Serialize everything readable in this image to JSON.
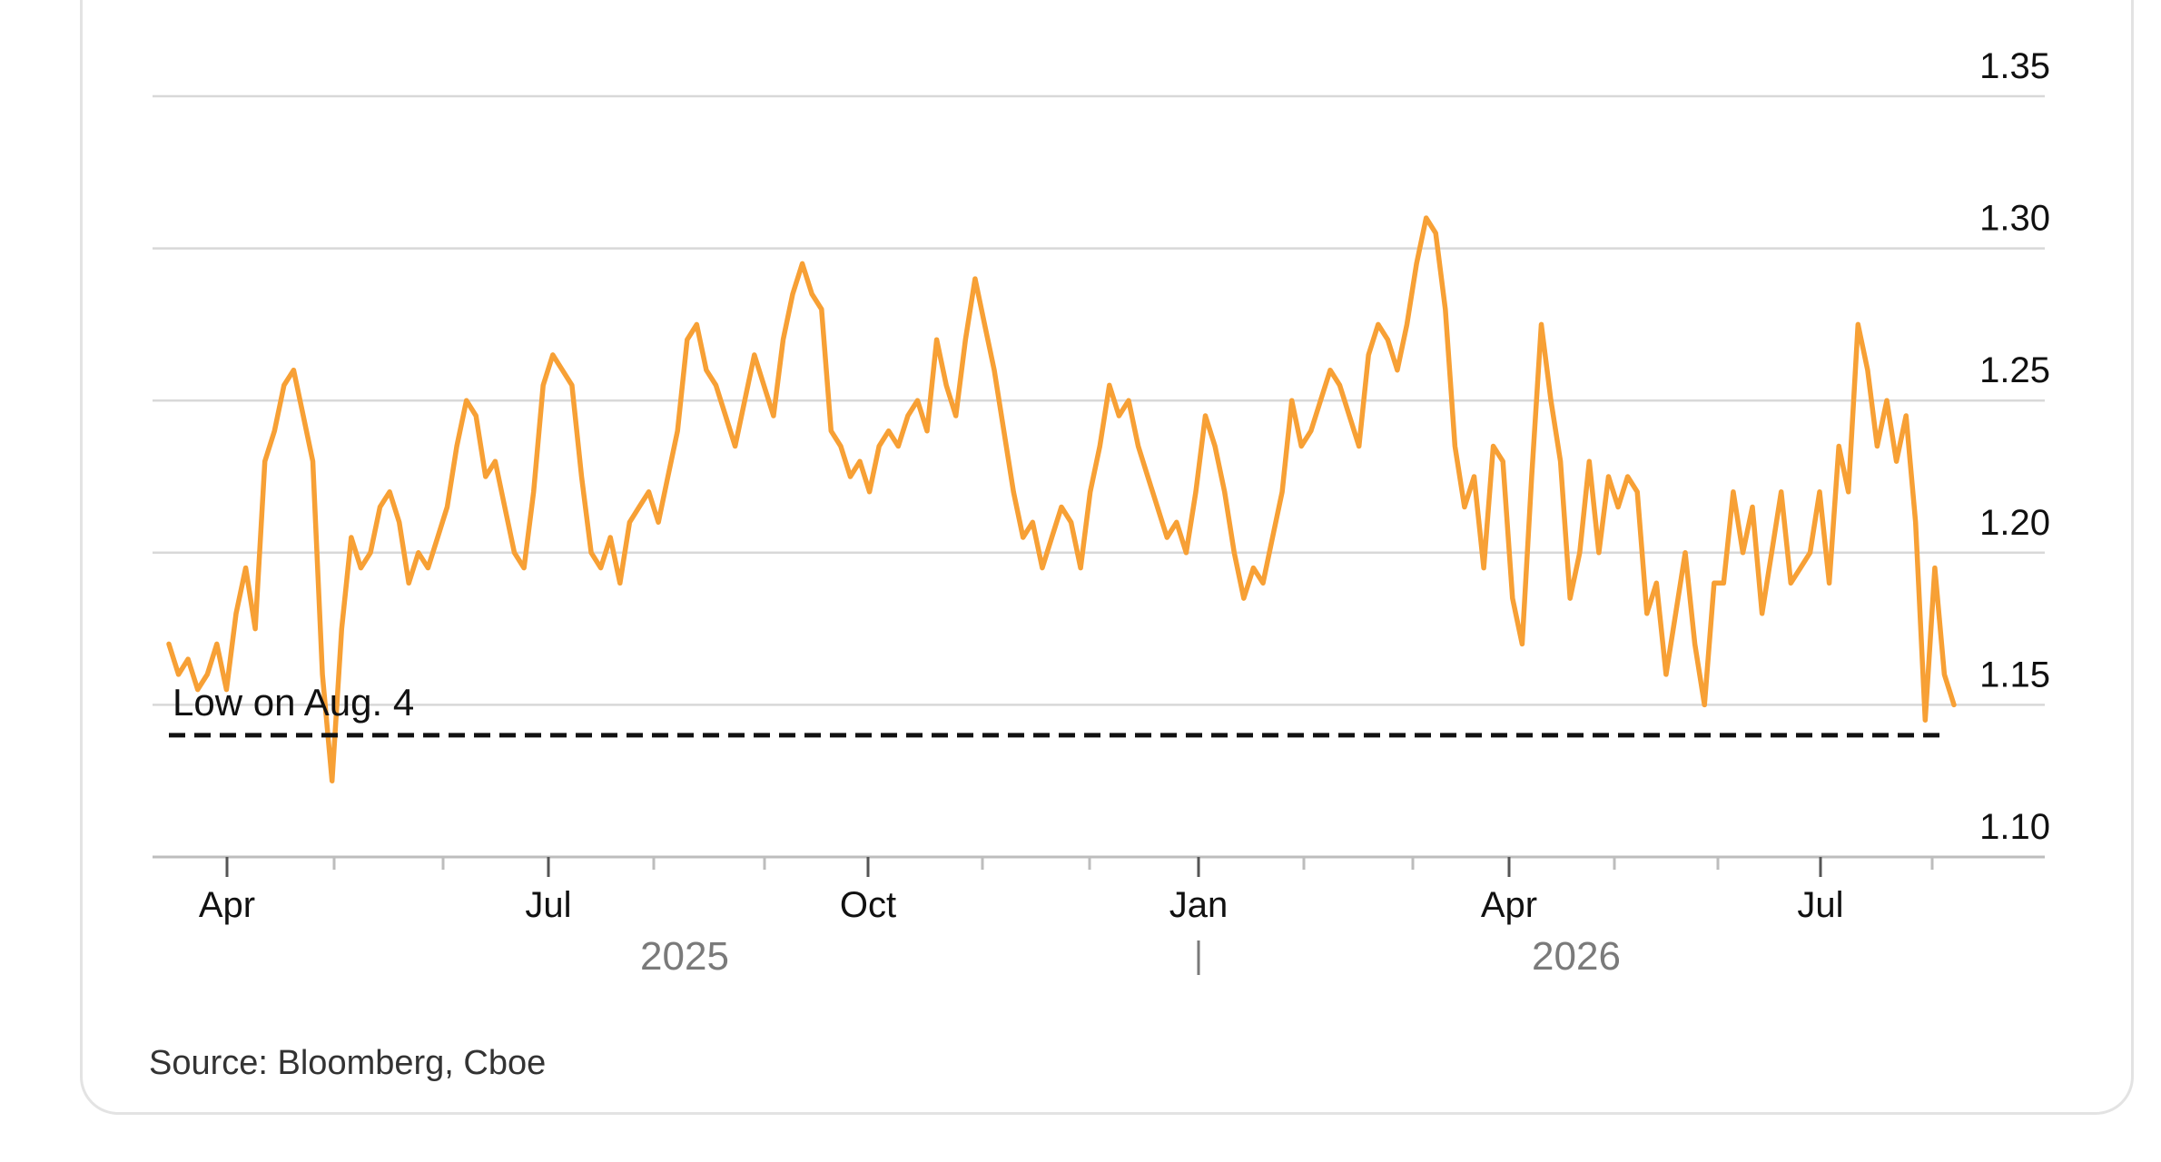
{
  "chart_data": {
    "type": "line",
    "title": "",
    "xlabel": "",
    "ylabel": "",
    "ylim": [
      1.1,
      1.35
    ],
    "yticks": [
      "1.35",
      "1.30",
      "1.25",
      "1.20",
      "1.15",
      "1.10"
    ],
    "xticks": [
      "Apr",
      "Jul",
      "Oct",
      "Jan",
      "Apr",
      "Jul"
    ],
    "years": [
      "2025",
      "2026"
    ],
    "grid": true,
    "series_color": "#f7a035",
    "series": [
      {
        "values": [
          1.17,
          1.16,
          1.165,
          1.155,
          1.16,
          1.17,
          1.155,
          1.18,
          1.195,
          1.175,
          1.23,
          1.24,
          1.255,
          1.26,
          1.245,
          1.23,
          1.16,
          1.125,
          1.175,
          1.205,
          1.195,
          1.2,
          1.215,
          1.22,
          1.21,
          1.19,
          1.2,
          1.195,
          1.205,
          1.215,
          1.235,
          1.25,
          1.245,
          1.225,
          1.23,
          1.215,
          1.2,
          1.195,
          1.22,
          1.255,
          1.265,
          1.26,
          1.255,
          1.225,
          1.2,
          1.195,
          1.205,
          1.19,
          1.21,
          1.215,
          1.22,
          1.21,
          1.225,
          1.24,
          1.27,
          1.275,
          1.26,
          1.255,
          1.245,
          1.235,
          1.25,
          1.265,
          1.255,
          1.245,
          1.27,
          1.285,
          1.295,
          1.285,
          1.28,
          1.24,
          1.235,
          1.225,
          1.23,
          1.22,
          1.235,
          1.24,
          1.235,
          1.245,
          1.25,
          1.24,
          1.27,
          1.255,
          1.245,
          1.27,
          1.29,
          1.275,
          1.26,
          1.24,
          1.22,
          1.205,
          1.21,
          1.195,
          1.205,
          1.215,
          1.21,
          1.195,
          1.22,
          1.235,
          1.255,
          1.245,
          1.25,
          1.235,
          1.225,
          1.215,
          1.205,
          1.21,
          1.2,
          1.22,
          1.245,
          1.235,
          1.22,
          1.2,
          1.185,
          1.195,
          1.19,
          1.205,
          1.22,
          1.25,
          1.235,
          1.24,
          1.25,
          1.26,
          1.255,
          1.245,
          1.235,
          1.265,
          1.275,
          1.27,
          1.26,
          1.275,
          1.295,
          1.31,
          1.305,
          1.28,
          1.235,
          1.215,
          1.225,
          1.195,
          1.235,
          1.23,
          1.185,
          1.17,
          1.225,
          1.275,
          1.25,
          1.23,
          1.185,
          1.2,
          1.23,
          1.2,
          1.225,
          1.215,
          1.225,
          1.22,
          1.18,
          1.19,
          1.16,
          1.18,
          1.2,
          1.17,
          1.15,
          1.19,
          1.19,
          1.22,
          1.2,
          1.215,
          1.18,
          1.2,
          1.22,
          1.19,
          1.195,
          1.2,
          1.22,
          1.19,
          1.235,
          1.22,
          1.275,
          1.26,
          1.235,
          1.25,
          1.23,
          1.245,
          1.21,
          1.145,
          1.195,
          1.16,
          1.15
        ]
      }
    ],
    "annotation": {
      "label": "Low on Aug. 4",
      "value": 1.14
    }
  },
  "source": "Source: Bloomberg, Cboe"
}
